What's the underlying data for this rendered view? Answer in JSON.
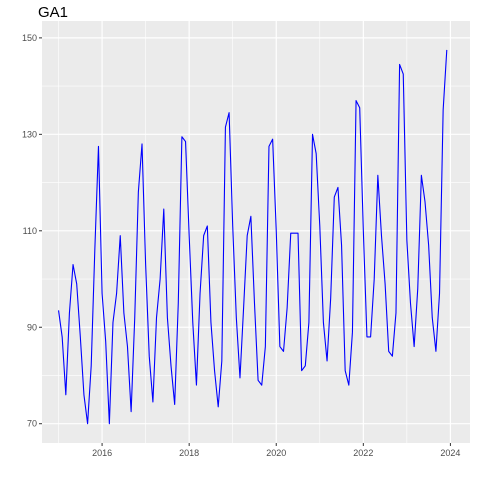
{
  "chart_data": {
    "type": "line",
    "title": "GA1",
    "xlabel": "",
    "ylabel": "",
    "xlim": [
      2014.62,
      2024.45
    ],
    "ylim": [
      66.0,
      153.5
    ],
    "x_ticks": [
      2016,
      2018,
      2020,
      2022,
      2024
    ],
    "y_ticks": [
      70,
      90,
      110,
      130,
      150
    ],
    "grid": true,
    "legend": "none",
    "line_color": "#0000ff",
    "panel_background": "#ebebeb",
    "grid_color": "#ffffff",
    "series": [
      {
        "x": [
          2015.0,
          2015.083,
          2015.167,
          2015.25,
          2015.333,
          2015.417,
          2015.5,
          2015.583,
          2015.667,
          2015.75,
          2015.833,
          2015.917,
          2016.0,
          2016.083,
          2016.167,
          2016.25,
          2016.333,
          2016.417,
          2016.5,
          2016.583,
          2016.667,
          2016.75,
          2016.833,
          2016.917,
          2017.0,
          2017.083,
          2017.167,
          2017.25,
          2017.333,
          2017.417,
          2017.5,
          2017.583,
          2017.667,
          2017.75,
          2017.833,
          2017.917,
          2018.0,
          2018.083,
          2018.167,
          2018.25,
          2018.333,
          2018.417,
          2018.5,
          2018.583,
          2018.667,
          2018.75,
          2018.833,
          2018.917,
          2019.0,
          2019.083,
          2019.167,
          2019.25,
          2019.333,
          2019.417,
          2019.5,
          2019.583,
          2019.667,
          2019.75,
          2019.833,
          2019.917,
          2020.0,
          2020.083,
          2020.167,
          2020.25,
          2020.333,
          2020.417,
          2020.5,
          2020.583,
          2020.667,
          2020.75,
          2020.833,
          2020.917,
          2021.0,
          2021.083,
          2021.167,
          2021.25,
          2021.333,
          2021.417,
          2021.5,
          2021.583,
          2021.667,
          2021.75,
          2021.833,
          2021.917,
          2022.0,
          2022.083,
          2022.167,
          2022.25,
          2022.333,
          2022.417,
          2022.5,
          2022.583,
          2022.667,
          2022.75,
          2022.833,
          2022.917,
          2023.0,
          2023.083,
          2023.167,
          2023.25,
          2023.333,
          2023.417,
          2023.5,
          2023.583,
          2023.667,
          2023.75,
          2023.833,
          2023.917
        ],
        "y": [
          93.5,
          88,
          76,
          93,
          103,
          99,
          88,
          76,
          70,
          82,
          106,
          127.5,
          97,
          87,
          70,
          91,
          97,
          109,
          93,
          86,
          72.5,
          92,
          118,
          128,
          103,
          84,
          74.5,
          92,
          100,
          114.5,
          92,
          82,
          74,
          95,
          129.5,
          128.5,
          109,
          91,
          78,
          97,
          109,
          111,
          91,
          81,
          73.5,
          83,
          131.5,
          134.5,
          111,
          92,
          79.5,
          94,
          109,
          113,
          95,
          79,
          78,
          86,
          127.5,
          129,
          110,
          86,
          85,
          94,
          109.5,
          109.5,
          109.5,
          81,
          82,
          91,
          130,
          126,
          111,
          91,
          83,
          96,
          117,
          119,
          107,
          81,
          78,
          89,
          137,
          135.5,
          110,
          88,
          88,
          100,
          121.5,
          109,
          99,
          85,
          84,
          93,
          144.5,
          142.5,
          108,
          95,
          86,
          98,
          121.5,
          116,
          107,
          92,
          85,
          97,
          135,
          147.5
        ]
      }
    ]
  }
}
